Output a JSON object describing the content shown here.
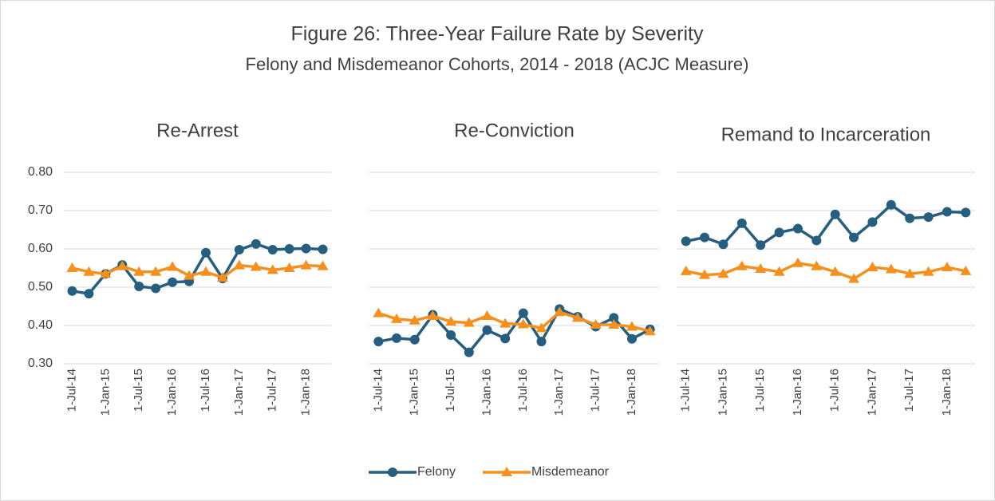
{
  "chart_data": {
    "type": "line",
    "title": "Figure 26: Three-Year Failure Rate by Severity",
    "subtitle": "Felony and Misdemeanor Cohorts, 2014 - 2018 (ACJC Measure)",
    "panels": [
      "Re-Arrest",
      "Re-Conviction",
      "Remand to Incarceration"
    ],
    "categories": [
      "1-Jul-14",
      null,
      "1-Jan-15",
      null,
      "1-Jul-15",
      null,
      "1-Jan-16",
      null,
      "1-Jul-16",
      null,
      "1-Jan-17",
      null,
      "1-Jul-17",
      null,
      "1-Jan-18",
      null
    ],
    "ylim": [
      0.3,
      0.8
    ],
    "yticks": [
      {
        "value": 0.3,
        "label": "0.30"
      },
      {
        "value": 0.4,
        "label": "0.40"
      },
      {
        "value": 0.5,
        "label": "0.50"
      },
      {
        "value": 0.6,
        "label": "0.60"
      },
      {
        "value": 0.7,
        "label": "0.70"
      },
      {
        "value": 0.8,
        "label": "0.80"
      }
    ],
    "grid": true,
    "legend": "bottom",
    "series": [
      {
        "name": "Felony",
        "color": "#255e7e",
        "marker": "circle",
        "values": [
          [
            0.49,
            0.483,
            0.535,
            0.558,
            0.502,
            0.497,
            0.513,
            0.515,
            0.59,
            0.523,
            0.598,
            0.613,
            0.598,
            0.6,
            0.601,
            0.599
          ],
          [
            0.358,
            0.367,
            0.363,
            0.428,
            0.375,
            0.33,
            0.388,
            0.366,
            0.432,
            0.358,
            0.443,
            0.423,
            0.397,
            0.42,
            0.365,
            0.39
          ],
          [
            0.62,
            0.63,
            0.612,
            0.667,
            0.61,
            0.643,
            0.653,
            0.622,
            0.69,
            0.63,
            0.67,
            0.715,
            0.68,
            0.683,
            0.697,
            0.695
          ]
        ]
      },
      {
        "name": "Misdemeanor",
        "color": "#f5901e",
        "marker": "triangle",
        "values": [
          [
            0.55,
            0.54,
            0.535,
            0.555,
            0.54,
            0.54,
            0.553,
            0.53,
            0.54,
            0.525,
            0.557,
            0.553,
            0.545,
            0.55,
            0.557,
            0.555
          ],
          [
            0.432,
            0.417,
            0.413,
            0.425,
            0.41,
            0.407,
            0.425,
            0.405,
            0.403,
            0.393,
            0.435,
            0.42,
            0.402,
            0.402,
            0.397,
            0.385
          ],
          [
            0.542,
            0.532,
            0.535,
            0.555,
            0.548,
            0.54,
            0.563,
            0.555,
            0.54,
            0.522,
            0.552,
            0.547,
            0.535,
            0.54,
            0.552,
            0.542
          ]
        ]
      }
    ]
  }
}
